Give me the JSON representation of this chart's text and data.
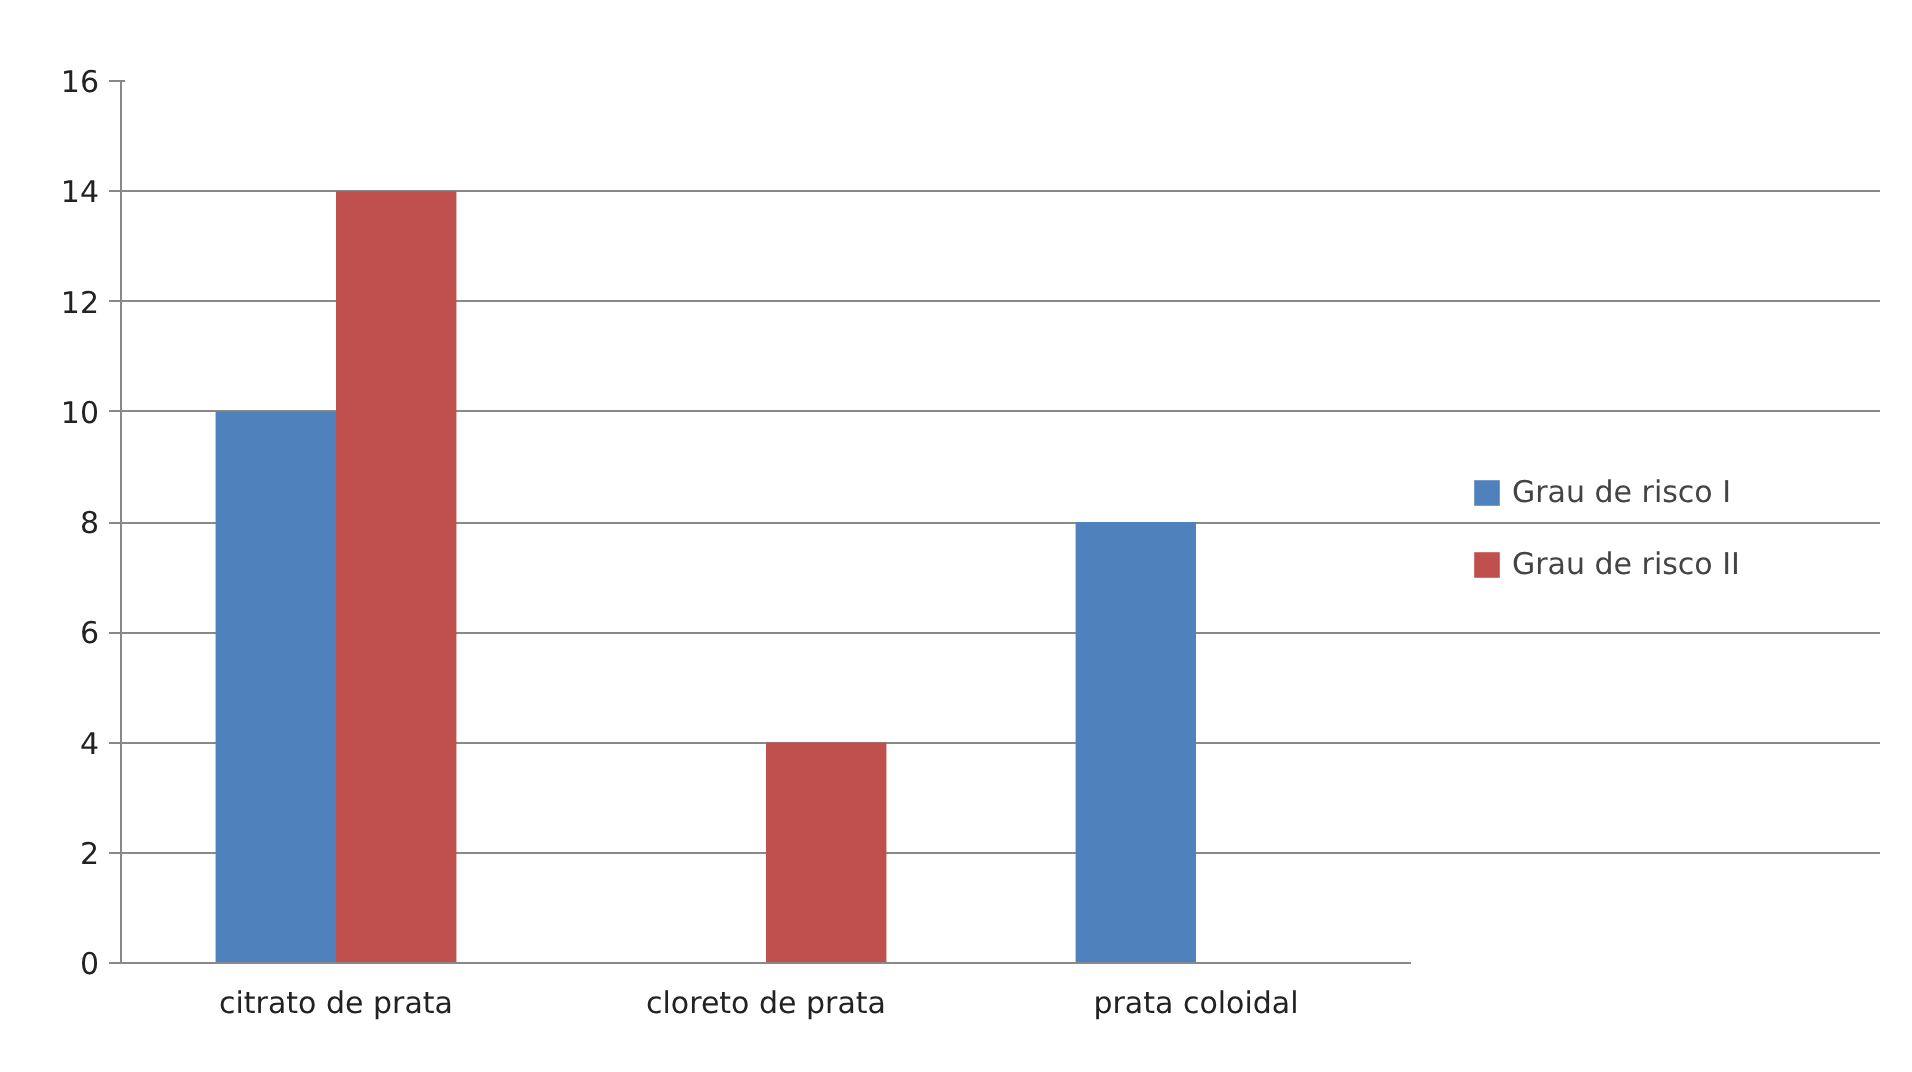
{
  "chart_data": {
    "type": "bar",
    "categories": [
      "citrato de prata",
      "cloreto de prata",
      "prata coloidal"
    ],
    "series": [
      {
        "name": "Grau de risco I",
        "color": "#4f81bd",
        "values": [
          10,
          0,
          8
        ]
      },
      {
        "name": "Grau de risco II",
        "color": "#c0504d",
        "values": [
          14,
          4,
          0
        ]
      }
    ],
    "ylim": [
      0,
      16
    ],
    "yticks": [
      0,
      2,
      4,
      6,
      8,
      10,
      12,
      14,
      16
    ],
    "grid": "y",
    "legend": "right"
  }
}
